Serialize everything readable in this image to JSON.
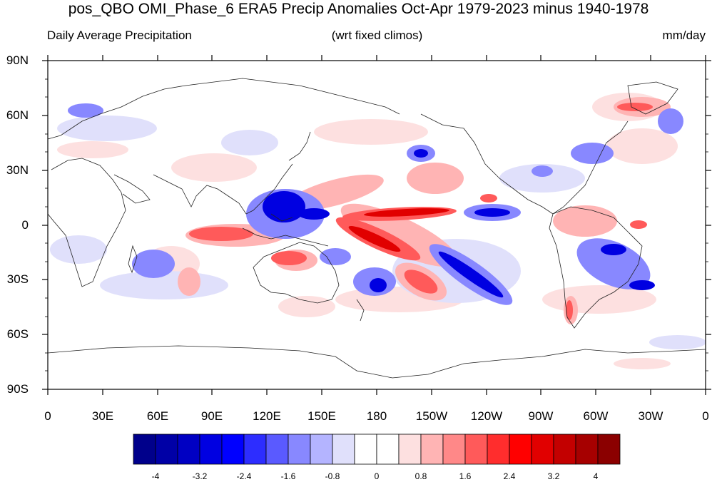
{
  "map": {
    "title": "pos_QBO OMI_Phase_6 ERA5 Precip Anomalies Oct-Apr 1979-2023 minus 1940-1978",
    "left_subtitle": "Daily Average Precipitation",
    "center_subtitle": "(wrt fixed climos)",
    "units": "mm/day",
    "lat_labels": [
      "90N",
      "60N",
      "30N",
      "0",
      "30S",
      "60S",
      "90S"
    ],
    "lon_labels": [
      "0",
      "30E",
      "60E",
      "90E",
      "120E",
      "150E",
      "180",
      "150W",
      "120W",
      "90W",
      "60W",
      "30W",
      "0"
    ]
  },
  "colorbar": {
    "labels": [
      "-4",
      "-3.2",
      "-2.4",
      "-1.6",
      "-0.8",
      "0",
      "0.8",
      "1.6",
      "2.4",
      "3.2",
      "4"
    ],
    "colors": [
      "#00008b",
      "#0000a6",
      "#0000c3",
      "#0000e1",
      "#0000ff",
      "#2d2dff",
      "#5a5aff",
      "#8888ff",
      "#b4b4ff",
      "#e0e0fb",
      "#ffffff",
      "#ffffff",
      "#fde0e0",
      "#ffb4b4",
      "#ff8888",
      "#ff5a5a",
      "#ff2d2d",
      "#ff0000",
      "#e10000",
      "#c30000",
      "#a60000",
      "#8b0000"
    ]
  }
}
